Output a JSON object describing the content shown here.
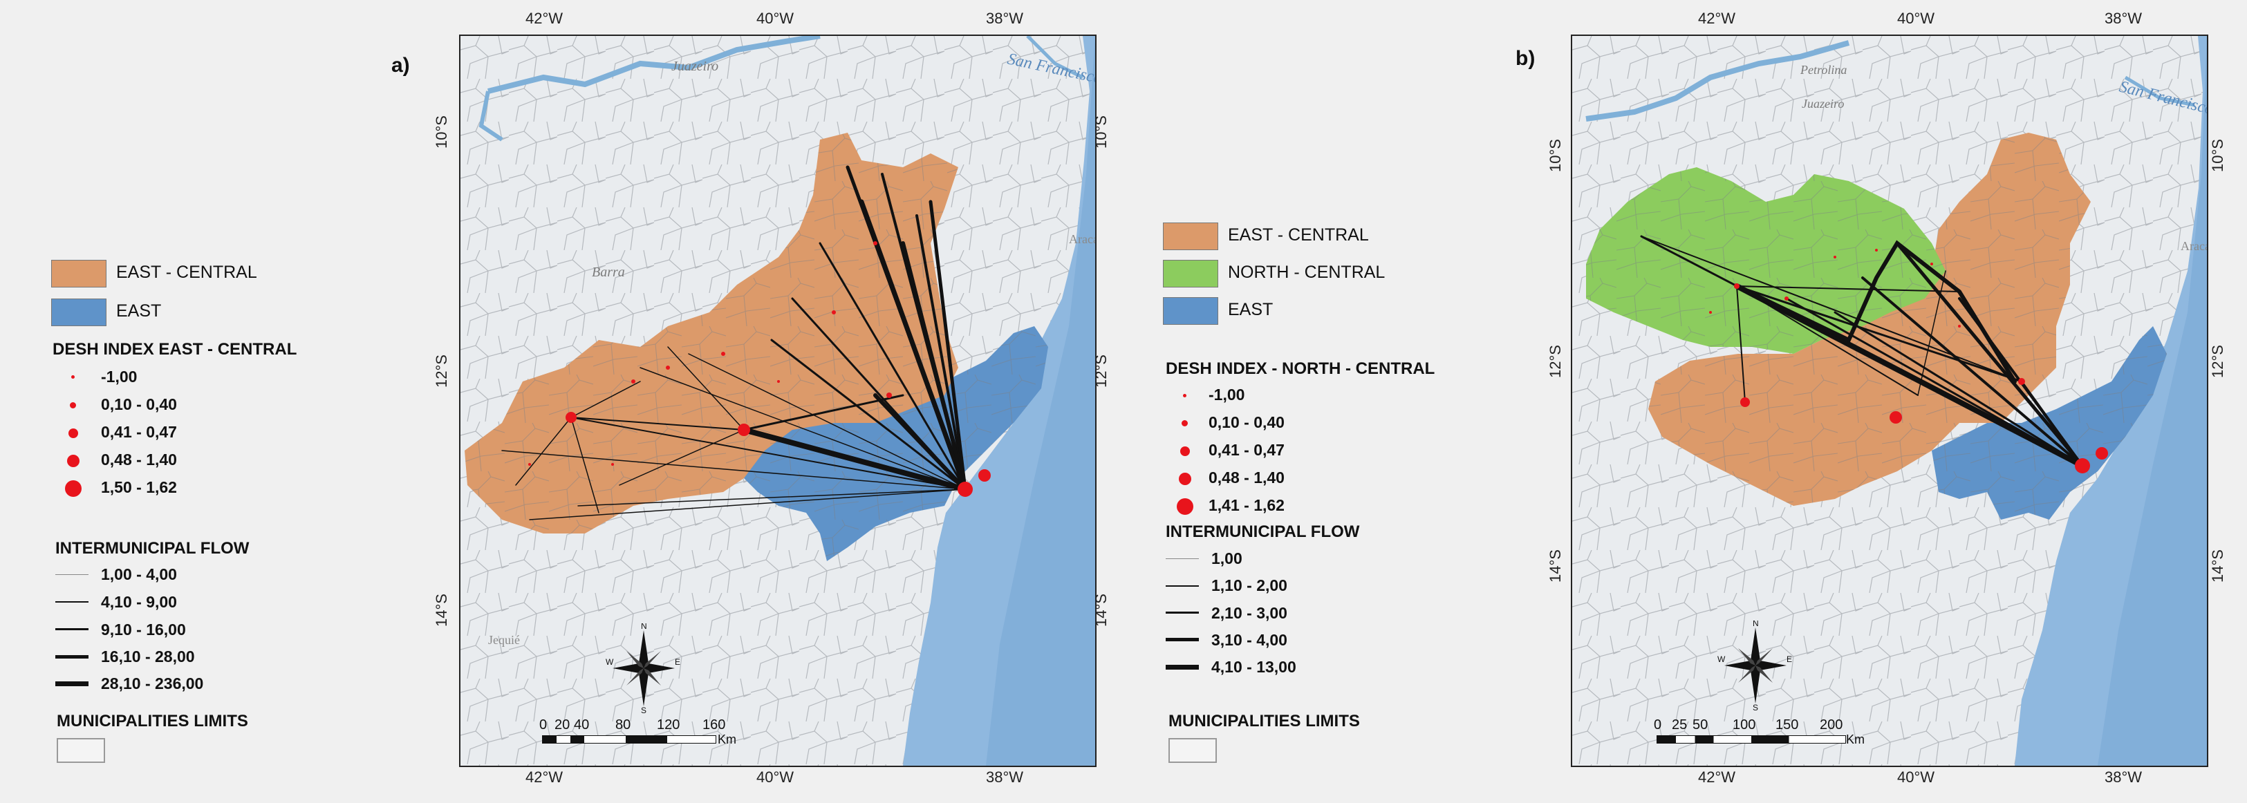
{
  "panels": [
    {
      "label": "a)",
      "x_ticks": [
        "42°W",
        "40°W",
        "38°W"
      ],
      "y_ticks": [
        "10°S",
        "12°S",
        "14°S"
      ],
      "scale_labels": [
        "0",
        "20",
        "40",
        "80",
        "120",
        "160"
      ],
      "scale_unit": "Km",
      "place_labels": [
        "San Francisco",
        "Juazeiro",
        "Barra",
        "Aracaju",
        "Jequié"
      ]
    },
    {
      "label": "b)",
      "x_ticks": [
        "42°W",
        "40°W",
        "38°W"
      ],
      "y_ticks": [
        "10°S",
        "12°S",
        "14°S"
      ],
      "scale_labels": [
        "0",
        "25",
        "50",
        "100",
        "150",
        "200"
      ],
      "scale_unit": "Km",
      "place_labels": [
        "San Francisco",
        "Petrolina",
        "Juazeiro",
        "Aracaju"
      ]
    }
  ],
  "legend_a": {
    "regions": [
      {
        "label": "EAST - CENTRAL",
        "color": "#dc9a6a"
      },
      {
        "label": "EAST",
        "color": "#5f93c9"
      }
    ],
    "desh_title": "DESH INDEX  EAST - CENTRAL",
    "desh_classes": [
      "-1,00",
      "0,10 - 0,40",
      "0,41 - 0,47",
      "0,48 - 1,40",
      "1,50 - 1,62"
    ],
    "flow_title": "INTERMUNICIPAL FLOW",
    "flow_classes": [
      "1,00 - 4,00",
      "4,10 - 9,00",
      "9,10 - 16,00",
      "16,10 - 28,00",
      "28,10 - 236,00"
    ],
    "limits_title": "MUNICIPALITIES LIMITS"
  },
  "legend_b": {
    "regions": [
      {
        "label": "EAST - CENTRAL",
        "color": "#dc9a6a"
      },
      {
        "label": "NORTH - CENTRAL",
        "color": "#8ccc5e"
      },
      {
        "label": "EAST",
        "color": "#5f93c9"
      }
    ],
    "desh_title": "DESH INDEX - NORTH - CENTRAL",
    "desh_classes": [
      "-1,00",
      "0,10 - 0,40",
      "0,41 - 0,47",
      "0,48 - 1,40",
      "1,41 - 1,62"
    ],
    "flow_title": "INTERMUNICIPAL FLOW",
    "flow_classes": [
      "1,00",
      "1,10 - 2,00",
      "2,10 - 3,00",
      "3,10 - 4,00",
      "4,10 - 13,00"
    ],
    "limits_title": "MUNICIPALITIES LIMITS"
  },
  "compass": {
    "n": "N",
    "s": "S",
    "e": "E",
    "w": "W"
  },
  "colors": {
    "east_central": "#dc9a6a",
    "north_central": "#8ccc5e",
    "east": "#5f93c9",
    "sea": "#8fb8df",
    "land": "#e9ecef",
    "river": "#7fb0d8",
    "point": "#e8141c",
    "flow": "#111111"
  }
}
